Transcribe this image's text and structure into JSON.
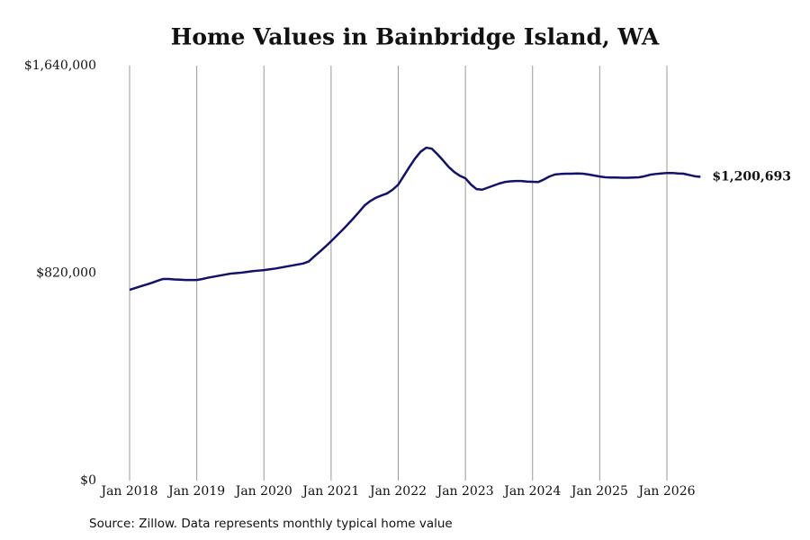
{
  "chart_data": {
    "type": "line",
    "title": "Home Values in Bainbridge Island, WA",
    "source": "Source: Zillow. Data represents monthly typical home value",
    "color": "#12126b",
    "grid": true,
    "categories": [
      "Jan 2018",
      null,
      null,
      null,
      null,
      null,
      null,
      null,
      null,
      null,
      null,
      null,
      "Jan 2019",
      null,
      null,
      null,
      null,
      null,
      null,
      null,
      null,
      null,
      null,
      null,
      "Jan 2020",
      null,
      null,
      null,
      null,
      null,
      null,
      null,
      null,
      null,
      null,
      null,
      "Jan 2021",
      null,
      null,
      null,
      null,
      null,
      null,
      null,
      null,
      null,
      null,
      null,
      "Jan 2022",
      null,
      null,
      null,
      null,
      null,
      null,
      null,
      null,
      null,
      null,
      null,
      "Jan 2023",
      null,
      null,
      null,
      null,
      null,
      null,
      null,
      null,
      null,
      null,
      null,
      "Jan 2024",
      null,
      null,
      null,
      null,
      null,
      null,
      null,
      null,
      null,
      null,
      null,
      "Jan 2025",
      null,
      null,
      null,
      null,
      null,
      null,
      null,
      null,
      null,
      null,
      null,
      "Jan 2026",
      null,
      null,
      null,
      null,
      null,
      null
    ],
    "values": [
      754000,
      761000,
      768000,
      775000,
      782000,
      790000,
      797000,
      797000,
      795000,
      794000,
      793000,
      793000,
      793000,
      797000,
      802000,
      806000,
      810000,
      814000,
      818000,
      820000,
      822000,
      825000,
      828000,
      830000,
      832000,
      835000,
      838000,
      842000,
      846000,
      850000,
      854000,
      858000,
      866000,
      886000,
      905000,
      925000,
      946000,
      968000,
      990000,
      1013000,
      1037000,
      1062000,
      1088000,
      1105000,
      1118000,
      1127000,
      1135000,
      1150000,
      1170000,
      1205000,
      1240000,
      1273000,
      1300000,
      1316000,
      1312000,
      1290000,
      1266000,
      1240000,
      1220000,
      1205000,
      1195000,
      1170000,
      1152000,
      1150000,
      1158000,
      1166000,
      1174000,
      1180000,
      1183000,
      1184000,
      1184000,
      1182000,
      1181000,
      1180000,
      1190000,
      1202000,
      1210000,
      1212000,
      1213000,
      1213000,
      1214000,
      1213000,
      1210000,
      1206000,
      1202000,
      1199000,
      1198000,
      1198000,
      1197000,
      1197000,
      1198000,
      1199000,
      1203000,
      1209000,
      1212000,
      1214000,
      1216000,
      1216000,
      1214000,
      1213000,
      1208000,
      1203000,
      1200693
    ],
    "value_labels": [
      null,
      null,
      null,
      null,
      null,
      null,
      null,
      null,
      null,
      null,
      null,
      null,
      null,
      null,
      null,
      null,
      null,
      null,
      null,
      null,
      null,
      null,
      null,
      null,
      null,
      null,
      null,
      null,
      null,
      null,
      null,
      null,
      null,
      null,
      null,
      null,
      null,
      null,
      null,
      null,
      null,
      null,
      null,
      null,
      null,
      null,
      null,
      null,
      null,
      null,
      null,
      null,
      null,
      null,
      null,
      null,
      null,
      null,
      null,
      null,
      null,
      null,
      null,
      null,
      null,
      null,
      null,
      null,
      null,
      null,
      null,
      null,
      null,
      null,
      null,
      null,
      null,
      null,
      null,
      null,
      null,
      null,
      null,
      null,
      null,
      null,
      null,
      null,
      null,
      null,
      null,
      null,
      null,
      null,
      null,
      null,
      null,
      null,
      null,
      null,
      null,
      null,
      "$1,200,693"
    ],
    "ylim": [
      0,
      1640000
    ],
    "yticks": [
      {
        "value": 0,
        "label": "$0"
      },
      {
        "value": 820000,
        "label": "$820,000"
      },
      {
        "value": 1640000,
        "label": "$1,640,000"
      }
    ]
  }
}
